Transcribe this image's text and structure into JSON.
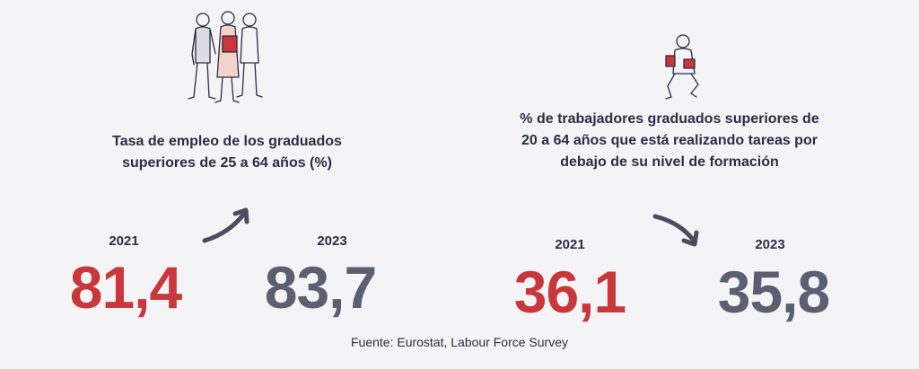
{
  "panels": [
    {
      "title_lines": [
        "Tasa de empleo de los graduados",
        "superiores de 25 a 64 años (%)"
      ],
      "before": {
        "year": "2021",
        "value": "81,4"
      },
      "after": {
        "year": "2023",
        "value": "83,7"
      }
    },
    {
      "title_lines": [
        "% de trabajadores graduados superiores de",
        "20 a 64 años que está realizando tareas por",
        "debajo de su nivel de formación"
      ],
      "before": {
        "year": "2021",
        "value": "36,1"
      },
      "after": {
        "year": "2023",
        "value": "35,8"
      }
    }
  ],
  "source": "Fuente: Eurostat, Labour Force Survey"
}
